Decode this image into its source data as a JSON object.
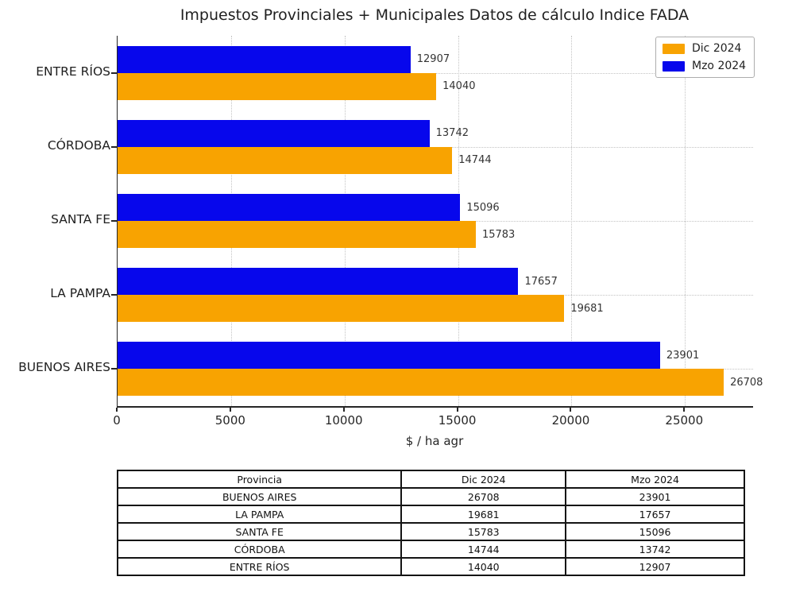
{
  "chart_data": {
    "type": "bar",
    "orientation": "horizontal",
    "title": "Impuestos Provinciales + Municipales Datos de cálculo Indice FADA",
    "xlabel": "$ / ha agr",
    "xlim": [
      0,
      28000
    ],
    "xticks": [
      0,
      5000,
      10000,
      15000,
      20000,
      25000
    ],
    "grid": true,
    "legend_position": "upper right",
    "categories": [
      "ENTRE RÍOS",
      "CÓRDOBA",
      "SANTA FE",
      "LA PAMPA",
      "BUENOS AIRES"
    ],
    "series": [
      {
        "name": "Mzo 2024",
        "color": "#0707ec",
        "position": "top",
        "values": [
          12907,
          13742,
          15096,
          17657,
          23901
        ]
      },
      {
        "name": "Dic 2024",
        "color": "#f8a301",
        "position": "bottom",
        "values": [
          14040,
          14744,
          15783,
          19681,
          26708
        ]
      }
    ]
  },
  "legend": {
    "items": [
      {
        "label": "Dic 2024",
        "color": "#f8a301"
      },
      {
        "label": "Mzo 2024",
        "color": "#0707ec"
      }
    ]
  },
  "table": {
    "headers": [
      "Provincia",
      "Dic 2024",
      "Mzo 2024"
    ],
    "col_widths_pct": [
      45.3,
      26.2,
      28.5
    ],
    "rows": [
      [
        "BUENOS AIRES",
        "26708",
        "23901"
      ],
      [
        "LA PAMPA",
        "19681",
        "17657"
      ],
      [
        "SANTA FE",
        "15783",
        "15096"
      ],
      [
        "CÓRDOBA",
        "14744",
        "13742"
      ],
      [
        "ENTRE RÍOS",
        "14040",
        "12907"
      ]
    ]
  }
}
